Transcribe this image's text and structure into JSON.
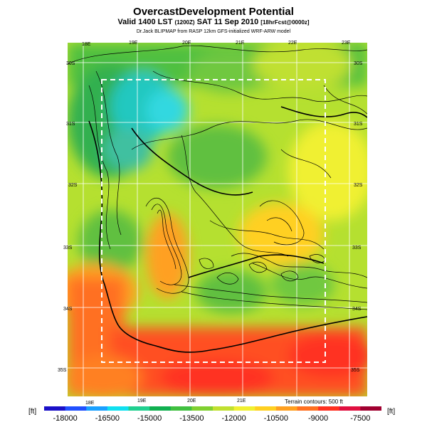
{
  "title": "OvercastDevelopment Potential",
  "subtitle": {
    "valid": "Valid 1400 LST",
    "utc": "(1200Z)",
    "date": "SAT 11 Sep 2010",
    "fcst": "[18hrFcst@0000z]"
  },
  "credit": "Dr.Jack BLIPMAP from RASP 12km GFS-initialized WRF-ARW model",
  "lon_top": [
    "18E",
    "19E",
    "20E",
    "21E",
    "22E",
    "23E"
  ],
  "lon_bottom": [
    "18E",
    "19E",
    "20E",
    "21E"
  ],
  "lat_left": [
    "30S",
    "31S",
    "32S",
    "33S",
    "34S",
    "35S"
  ],
  "lat_right": [
    "30S",
    "31S",
    "32S",
    "33S",
    "34S",
    "35S"
  ],
  "terrain_note": "Terrain contours: 500 ft",
  "colorbar": {
    "unit_left": "[ft]",
    "unit_right": "[ft]",
    "ticks": [
      "-18000",
      "-16500",
      "-15000",
      "-13500",
      "-12000",
      "-10500",
      "-9000",
      "-7500"
    ],
    "colors": [
      "#1a10c8",
      "#2050ff",
      "#1aa0ff",
      "#10e0f0",
      "#20d090",
      "#10b050",
      "#40c040",
      "#80d030",
      "#c0e030",
      "#f0f030",
      "#ffd020",
      "#ffa020",
      "#ff7020",
      "#ff3020",
      "#e01040",
      "#a00030"
    ]
  },
  "map": {
    "frame_color": "#ffffff",
    "coast_color": "#000000"
  }
}
